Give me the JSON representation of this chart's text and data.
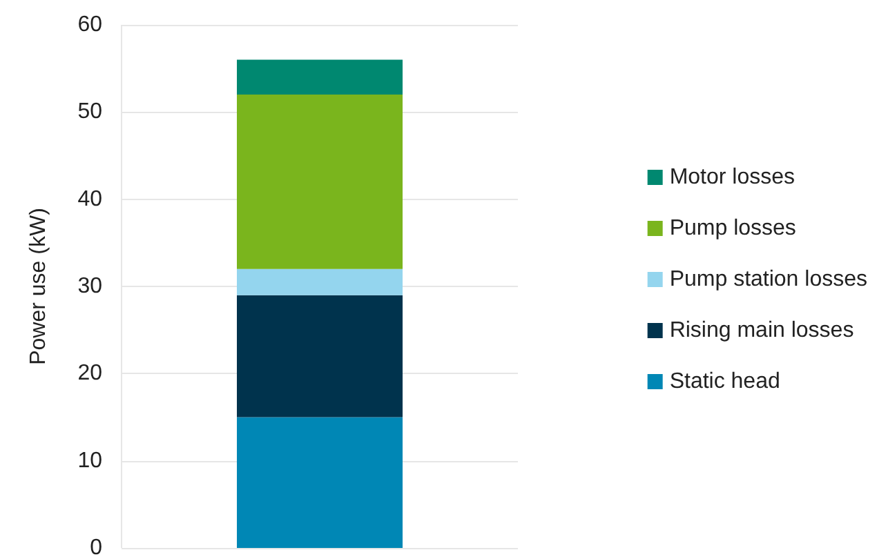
{
  "chart_data": {
    "type": "bar",
    "stacked": true,
    "ylabel": "Power use (kW)",
    "categories": [
      null
    ],
    "series": [
      {
        "name": "Static head",
        "color": "#0087b5",
        "values": [
          15
        ]
      },
      {
        "name": "Rising main losses",
        "color": "#00334d",
        "values": [
          14
        ]
      },
      {
        "name": "Pump station losses",
        "color": "#94d5ee",
        "values": [
          3
        ]
      },
      {
        "name": "Pump losses",
        "color": "#7ab51d",
        "values": [
          20
        ]
      },
      {
        "name": "Motor losses",
        "color": "#008870",
        "values": [
          4
        ]
      }
    ],
    "ylim": [
      0,
      60
    ],
    "yticks": [
      0,
      10,
      20,
      30,
      40,
      50,
      60
    ],
    "grid": "y",
    "legend": "right"
  }
}
